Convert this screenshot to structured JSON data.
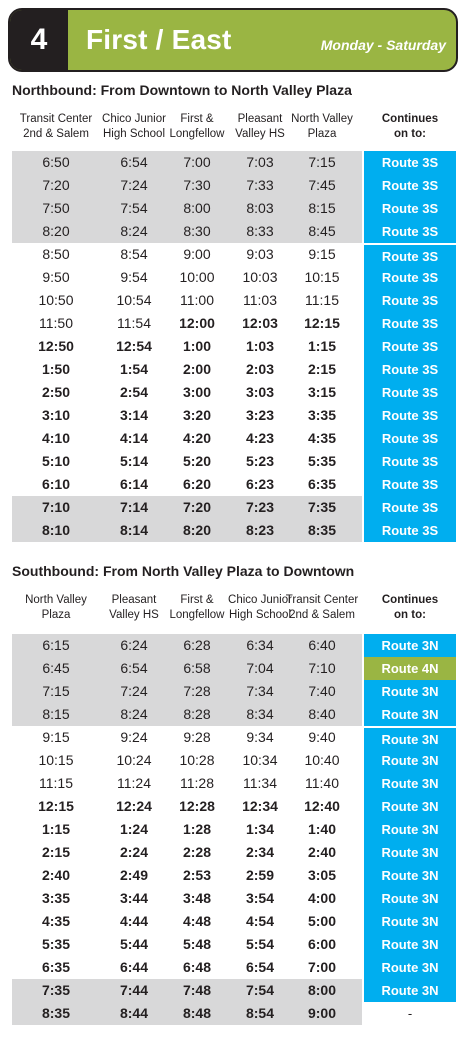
{
  "header": {
    "route_number": "4",
    "route_name": "First / East",
    "service_days": "Monday - Saturday",
    "colors": {
      "route_green": "#9ab543",
      "route_blue": "#00aeef",
      "shade_gray": "#d8d8d9"
    }
  },
  "northbound": {
    "title": "Northbound: From Downtown to North Valley Plaza",
    "stops": [
      [
        "Transit Center",
        "2nd & Salem"
      ],
      [
        "Chico Junior",
        "High School"
      ],
      [
        "First &",
        "Longfellow"
      ],
      [
        "Pleasant",
        "Valley HS"
      ],
      [
        "North Valley",
        "Plaza"
      ]
    ],
    "continues_header": [
      "Continues",
      "on to:"
    ],
    "rows": [
      {
        "times": [
          "6:50",
          "6:54",
          "7:00",
          "7:03",
          "7:15"
        ],
        "continues": "Route 3S",
        "bold": false,
        "shaded": true
      },
      {
        "times": [
          "7:20",
          "7:24",
          "7:30",
          "7:33",
          "7:45"
        ],
        "continues": "Route 3S",
        "bold": false,
        "shaded": true
      },
      {
        "times": [
          "7:50",
          "7:54",
          "8:00",
          "8:03",
          "8:15"
        ],
        "continues": "Route 3S",
        "bold": false,
        "shaded": true
      },
      {
        "times": [
          "8:20",
          "8:24",
          "8:30",
          "8:33",
          "8:45"
        ],
        "continues": "Route 3S",
        "bold": false,
        "shaded": true
      },
      {
        "times": [
          "8:50",
          "8:54",
          "9:00",
          "9:03",
          "9:15"
        ],
        "continues": "Route 3S",
        "bold": false,
        "shaded": false
      },
      {
        "times": [
          "9:50",
          "9:54",
          "10:00",
          "10:03",
          "10:15"
        ],
        "continues": "Route 3S",
        "bold": false,
        "shaded": false
      },
      {
        "times": [
          "10:50",
          "10:54",
          "11:00",
          "11:03",
          "11:15"
        ],
        "continues": "Route 3S",
        "bold": false,
        "shaded": false
      },
      {
        "times": [
          "11:50",
          "11:54",
          "12:00",
          "12:03",
          "12:15"
        ],
        "continues": "Route 3S",
        "bold": false,
        "shaded": false,
        "bold_from": 2
      },
      {
        "times": [
          "12:50",
          "12:54",
          "1:00",
          "1:03",
          "1:15"
        ],
        "continues": "Route 3S",
        "bold": true,
        "shaded": false
      },
      {
        "times": [
          "1:50",
          "1:54",
          "2:00",
          "2:03",
          "2:15"
        ],
        "continues": "Route 3S",
        "bold": true,
        "shaded": false
      },
      {
        "times": [
          "2:50",
          "2:54",
          "3:00",
          "3:03",
          "3:15"
        ],
        "continues": "Route 3S",
        "bold": true,
        "shaded": false
      },
      {
        "times": [
          "3:10",
          "3:14",
          "3:20",
          "3:23",
          "3:35"
        ],
        "continues": "Route 3S",
        "bold": true,
        "shaded": false
      },
      {
        "times": [
          "4:10",
          "4:14",
          "4:20",
          "4:23",
          "4:35"
        ],
        "continues": "Route 3S",
        "bold": true,
        "shaded": false
      },
      {
        "times": [
          "5:10",
          "5:14",
          "5:20",
          "5:23",
          "5:35"
        ],
        "continues": "Route 3S",
        "bold": true,
        "shaded": false
      },
      {
        "times": [
          "6:10",
          "6:14",
          "6:20",
          "6:23",
          "6:35"
        ],
        "continues": "Route 3S",
        "bold": true,
        "shaded": false
      },
      {
        "times": [
          "7:10",
          "7:14",
          "7:20",
          "7:23",
          "7:35"
        ],
        "continues": "Route 3S",
        "bold": true,
        "shaded": true
      },
      {
        "times": [
          "8:10",
          "8:14",
          "8:20",
          "8:23",
          "8:35"
        ],
        "continues": "Route 3S",
        "bold": true,
        "shaded": true
      }
    ]
  },
  "southbound": {
    "title": "Southbound:  From North Valley Plaza to Downtown",
    "stops": [
      [
        "North Valley",
        "Plaza"
      ],
      [
        "Pleasant",
        "Valley HS"
      ],
      [
        "First &",
        "Longfellow"
      ],
      [
        "Chico Junior",
        "High School"
      ],
      [
        "Transit Center",
        "2nd & Salem"
      ]
    ],
    "continues_header": [
      "Continues",
      "on to:"
    ],
    "rows": [
      {
        "times": [
          "6:15",
          "6:24",
          "6:28",
          "6:34",
          "6:40"
        ],
        "continues": "Route 3N",
        "bold": false,
        "shaded": true
      },
      {
        "times": [
          "6:45",
          "6:54",
          "6:58",
          "7:04",
          "7:10"
        ],
        "continues": "Route 4N",
        "bold": false,
        "shaded": true,
        "alt": true
      },
      {
        "times": [
          "7:15",
          "7:24",
          "7:28",
          "7:34",
          "7:40"
        ],
        "continues": "Route 3N",
        "bold": false,
        "shaded": true
      },
      {
        "times": [
          "8:15",
          "8:24",
          "8:28",
          "8:34",
          "8:40"
        ],
        "continues": "Route 3N",
        "bold": false,
        "shaded": true
      },
      {
        "times": [
          "9:15",
          "9:24",
          "9:28",
          "9:34",
          "9:40"
        ],
        "continues": "Route 3N",
        "bold": false,
        "shaded": false
      },
      {
        "times": [
          "10:15",
          "10:24",
          "10:28",
          "10:34",
          "10:40"
        ],
        "continues": "Route 3N",
        "bold": false,
        "shaded": false
      },
      {
        "times": [
          "11:15",
          "11:24",
          "11:28",
          "11:34",
          "11:40"
        ],
        "continues": "Route 3N",
        "bold": false,
        "shaded": false
      },
      {
        "times": [
          "12:15",
          "12:24",
          "12:28",
          "12:34",
          "12:40"
        ],
        "continues": "Route 3N",
        "bold": true,
        "shaded": false
      },
      {
        "times": [
          "1:15",
          "1:24",
          "1:28",
          "1:34",
          "1:40"
        ],
        "continues": "Route 3N",
        "bold": true,
        "shaded": false
      },
      {
        "times": [
          "2:15",
          "2:24",
          "2:28",
          "2:34",
          "2:40"
        ],
        "continues": "Route 3N",
        "bold": true,
        "shaded": false
      },
      {
        "times": [
          "2:40",
          "2:49",
          "2:53",
          "2:59",
          "3:05"
        ],
        "continues": "Route 3N",
        "bold": true,
        "shaded": false
      },
      {
        "times": [
          "3:35",
          "3:44",
          "3:48",
          "3:54",
          "4:00"
        ],
        "continues": "Route 3N",
        "bold": true,
        "shaded": false
      },
      {
        "times": [
          "4:35",
          "4:44",
          "4:48",
          "4:54",
          "5:00"
        ],
        "continues": "Route 3N",
        "bold": true,
        "shaded": false
      },
      {
        "times": [
          "5:35",
          "5:44",
          "5:48",
          "5:54",
          "6:00"
        ],
        "continues": "Route 3N",
        "bold": true,
        "shaded": false
      },
      {
        "times": [
          "6:35",
          "6:44",
          "6:48",
          "6:54",
          "7:00"
        ],
        "continues": "Route 3N",
        "bold": true,
        "shaded": false
      },
      {
        "times": [
          "7:35",
          "7:44",
          "7:48",
          "7:54",
          "8:00"
        ],
        "continues": "Route 3N",
        "bold": true,
        "shaded": true
      },
      {
        "times": [
          "8:35",
          "8:44",
          "8:48",
          "8:54",
          "9:00"
        ],
        "continues": "-",
        "bold": true,
        "shaded": true,
        "empty": true
      }
    ]
  }
}
